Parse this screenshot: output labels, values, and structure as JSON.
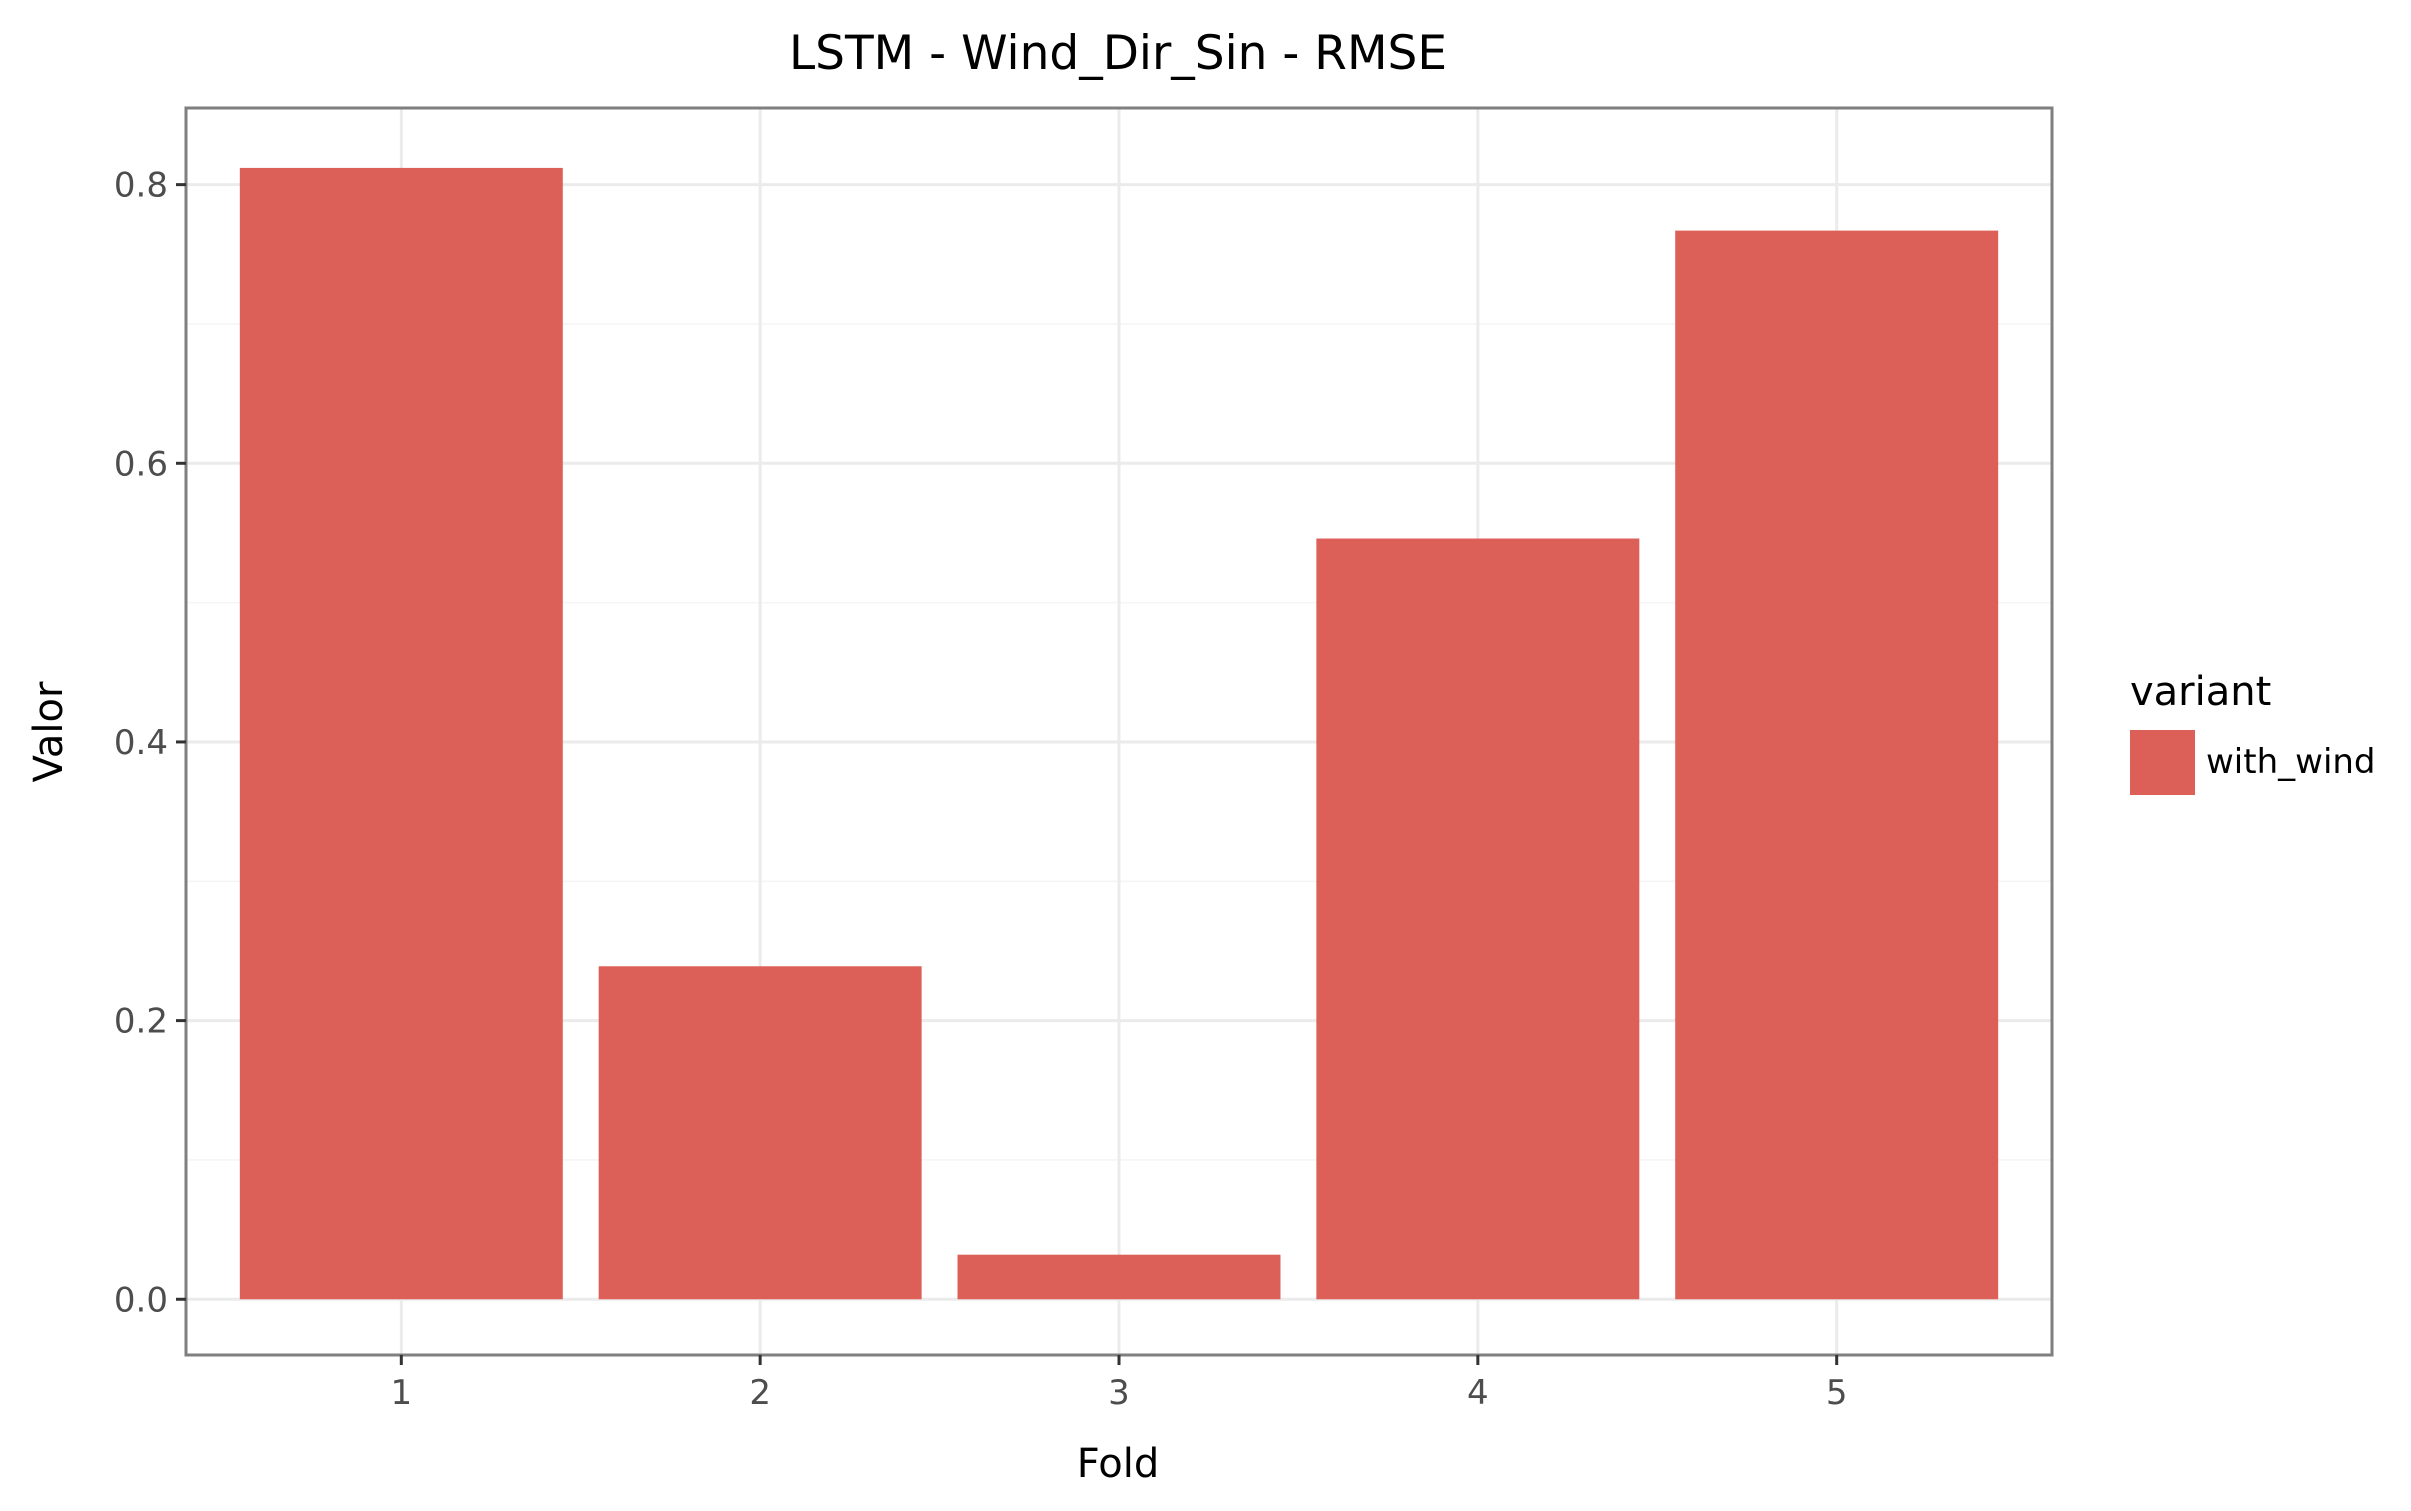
{
  "chart_data": {
    "type": "bar",
    "title": "LSTM - Wind_Dir_Sin - RMSE",
    "xlabel": "Fold",
    "ylabel": "Valor",
    "categories": [
      "1",
      "2",
      "3",
      "4",
      "5"
    ],
    "series": [
      {
        "name": "with_wind",
        "color": "#dc5f58",
        "values": [
          0.812,
          0.239,
          0.032,
          0.546,
          0.767
        ]
      }
    ],
    "ylim": [
      -0.04,
      0.855
    ],
    "yticks": [
      0.0,
      0.2,
      0.4,
      0.6,
      0.8
    ],
    "ytick_labels": [
      "0.0",
      "0.2",
      "0.4",
      "0.6",
      "0.8"
    ],
    "grid": true,
    "legend": {
      "title": "variant",
      "position": "right"
    }
  }
}
